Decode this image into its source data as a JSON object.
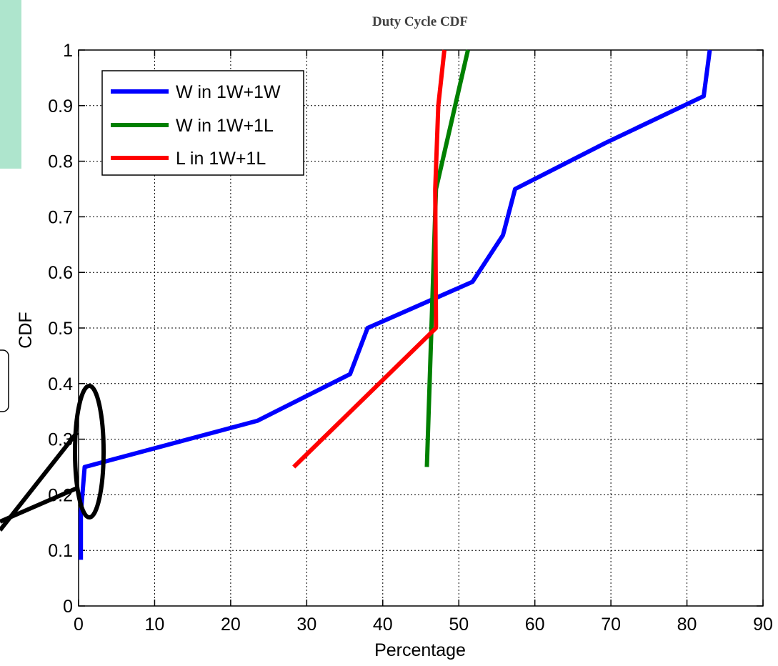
{
  "chart_data": {
    "type": "line",
    "title": "Duty Cycle CDF",
    "xlabel": "Percentage",
    "ylabel": "CDF",
    "xlim": [
      0,
      90
    ],
    "ylim": [
      0,
      1
    ],
    "xticks": [
      0,
      10,
      20,
      30,
      40,
      50,
      60,
      70,
      80,
      90
    ],
    "yticks": [
      0,
      0.1,
      0.2,
      0.3,
      0.4,
      0.5,
      0.6,
      0.7,
      0.8,
      0.9,
      1
    ],
    "grid": true,
    "legend_position": "top-left",
    "series": [
      {
        "name": "W in 1W+1W",
        "color": "#0000ff",
        "x": [
          0.3,
          0.3,
          0.5,
          0.8,
          23.5,
          35.7,
          38.0,
          51.8,
          55.8,
          57.4,
          69.3,
          82.2,
          83.0
        ],
        "y": [
          0.083,
          0.167,
          0.2,
          0.25,
          0.333,
          0.417,
          0.5,
          0.583,
          0.667,
          0.75,
          0.833,
          0.917,
          1.0
        ]
      },
      {
        "name": "W in 1W+1L",
        "color": "#008000",
        "x": [
          45.8,
          47.0,
          51.2
        ],
        "y": [
          0.25,
          0.75,
          1.0
        ]
      },
      {
        "name": "L in 1W+1L",
        "color": "#ff0000",
        "x": [
          28.3,
          47.0,
          46.9,
          47.3,
          48.1
        ],
        "y": [
          0.25,
          0.5,
          0.75,
          0.9,
          1.0
        ]
      }
    ]
  },
  "decor": {
    "teal_panel_color": "#aee5cd"
  }
}
